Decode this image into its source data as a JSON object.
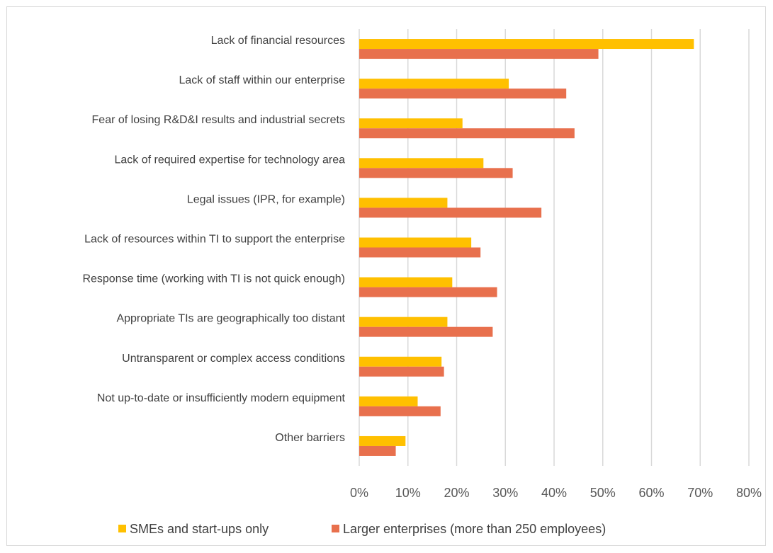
{
  "chart_data": {
    "type": "bar",
    "orientation": "horizontal",
    "categories": [
      "Lack of financial resources",
      "Lack of staff within our enterprise",
      "Fear of losing R&D&I results and industrial secrets",
      "Lack of required expertise for technology area",
      "Legal issues (IPR, for example)",
      "Lack of resources within TI to support the enterprise",
      "Response time (working with TI is not quick enough)",
      "Appropriate TIs are geographically too distant",
      "Untransparent or complex access conditions",
      "Not up-to-date or insufficiently modern equipment",
      "Other barriers"
    ],
    "series": [
      {
        "name": "SMEs and start-ups only",
        "color": "#FFC000",
        "values": [
          68.7,
          30.7,
          21.2,
          25.5,
          18.1,
          23.0,
          19.1,
          18.1,
          16.9,
          12.0,
          9.5
        ]
      },
      {
        "name": "Larger enterprises (more than 250 employees)",
        "color": "#E8704D",
        "values": [
          49.1,
          42.5,
          44.2,
          31.5,
          37.4,
          24.9,
          28.3,
          27.4,
          17.4,
          16.7,
          7.5
        ]
      }
    ],
    "xlim": [
      0,
      80
    ],
    "xticks": [
      "0%",
      "10%",
      "20%",
      "30%",
      "40%",
      "50%",
      "60%",
      "70%",
      "80%"
    ],
    "grid": true,
    "legend_position": "bottom",
    "title": "",
    "xlabel": "",
    "ylabel": ""
  }
}
